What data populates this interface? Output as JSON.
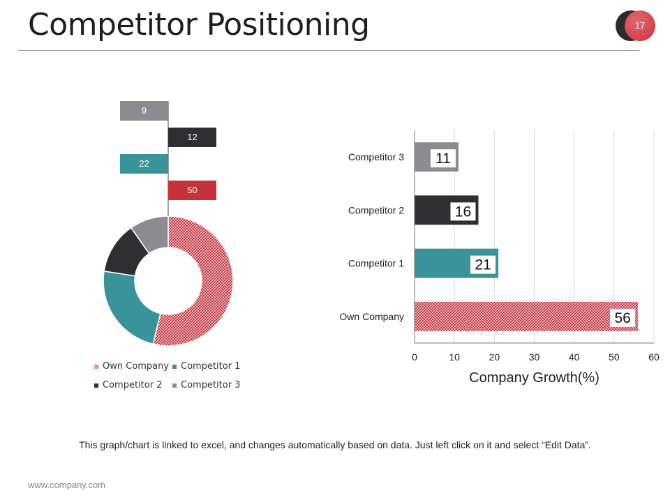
{
  "slide": {
    "title": "Competitor Positioning",
    "page_number": "17",
    "note": "This graph/chart is linked to excel, and changes automatically  based on data. Just left click on it and select “Edit Data”.",
    "website": "www.company.com"
  },
  "colors": {
    "own_company": "#c8303a",
    "competitor_1": "#3a9399",
    "competitor_2": "#2f2f31",
    "competitor_3": "#8c8b8f"
  },
  "chart_data": [
    {
      "type": "pie",
      "variant": "doughnut",
      "categories": [
        "Own Company",
        "Competitor 1",
        "Competitor 2",
        "Competitor 3"
      ],
      "values": [
        50,
        22,
        12,
        9
      ],
      "legend": "bottom",
      "data_labels": [
        "50",
        "22",
        "12",
        "9"
      ]
    },
    {
      "type": "bar",
      "orientation": "horizontal",
      "categories": [
        "Own Company",
        "Competitor 1",
        "Competitor 2",
        "Competitor 3"
      ],
      "values": [
        56,
        21,
        16,
        11
      ],
      "data_labels": [
        "56",
        "21",
        "16",
        "11"
      ],
      "xlabel": "Company Growth(%)",
      "xlim": [
        0,
        60
      ],
      "xticks": [
        "0",
        "10",
        "20",
        "30",
        "40",
        "50",
        "60"
      ],
      "grid": true
    }
  ]
}
